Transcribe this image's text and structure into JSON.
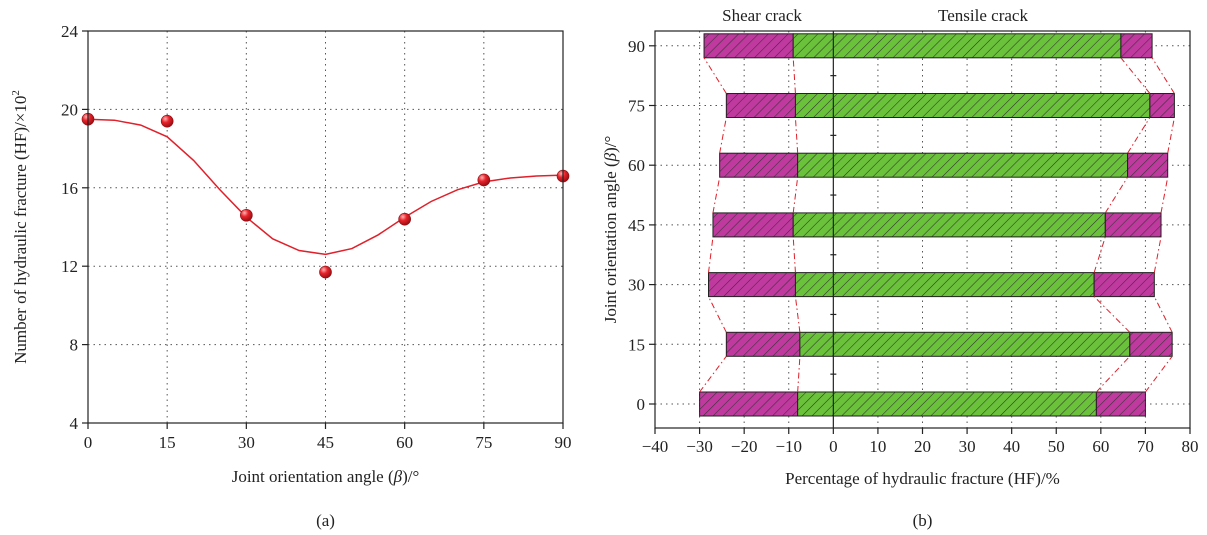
{
  "chart_data": [
    {
      "type": "scatter",
      "panel_label": "(a)",
      "xlabel_parts": [
        "Joint orientation angle (",
        "β",
        ")/°"
      ],
      "ylabel_parts": [
        "Number of hydraulic fracture (HF)/×10",
        "2"
      ],
      "xlim": [
        0,
        90
      ],
      "ylim": [
        4,
        24
      ],
      "xticks": [
        0,
        15,
        30,
        45,
        60,
        75,
        90
      ],
      "yticks": [
        4,
        8,
        12,
        16,
        20,
        24
      ],
      "grid": true,
      "colors": {
        "marker": "#e0202a",
        "fit_line": "#e0202a"
      },
      "points": [
        {
          "x": 0,
          "y": 19.5
        },
        {
          "x": 15,
          "y": 19.4
        },
        {
          "x": 30,
          "y": 14.6
        },
        {
          "x": 45,
          "y": 11.7
        },
        {
          "x": 60,
          "y": 14.4
        },
        {
          "x": 75,
          "y": 16.4
        },
        {
          "x": 90,
          "y": 16.6
        }
      ],
      "fit_curve": [
        {
          "x": 0,
          "y": 19.5
        },
        {
          "x": 5,
          "y": 19.45
        },
        {
          "x": 10,
          "y": 19.2
        },
        {
          "x": 15,
          "y": 18.6
        },
        {
          "x": 20,
          "y": 17.4
        },
        {
          "x": 25,
          "y": 15.9
        },
        {
          "x": 30,
          "y": 14.5
        },
        {
          "x": 35,
          "y": 13.4
        },
        {
          "x": 40,
          "y": 12.8
        },
        {
          "x": 45,
          "y": 12.6
        },
        {
          "x": 50,
          "y": 12.9
        },
        {
          "x": 55,
          "y": 13.6
        },
        {
          "x": 60,
          "y": 14.5
        },
        {
          "x": 65,
          "y": 15.3
        },
        {
          "x": 70,
          "y": 15.9
        },
        {
          "x": 75,
          "y": 16.3
        },
        {
          "x": 80,
          "y": 16.5
        },
        {
          "x": 85,
          "y": 16.6
        },
        {
          "x": 90,
          "y": 16.65
        }
      ]
    },
    {
      "type": "bar",
      "orientation": "horizontal",
      "panel_label": "(b)",
      "xlabel": "Percentage of hydraulic fracture (HF)/%",
      "ylabel_parts": [
        "Joint orientation angle (",
        "β",
        ")/°"
      ],
      "region_labels": {
        "left": "Shear crack",
        "right": "Tensile crack"
      },
      "xlim": [
        -40,
        80
      ],
      "xticks": [
        -40,
        -30,
        -20,
        -10,
        0,
        10,
        20,
        30,
        40,
        50,
        60,
        70,
        80
      ],
      "categories": [
        0,
        15,
        30,
        45,
        60,
        75,
        90
      ],
      "grid": true,
      "colors": {
        "shear": "#c0399f",
        "tensile": "#6ac13a",
        "connector": "#e0202a"
      },
      "bars": [
        {
          "angle": 0,
          "start": -30,
          "split": -8,
          "split_pos": 59,
          "end": 70
        },
        {
          "angle": 15,
          "start": -24,
          "split": -7.5,
          "split_pos": 66.5,
          "end": 76
        },
        {
          "angle": 30,
          "start": -28,
          "split": -8.5,
          "split_pos": 58.5,
          "end": 72
        },
        {
          "angle": 45,
          "start": -27,
          "split": -9,
          "split_pos": 61,
          "end": 73.5
        },
        {
          "angle": 60,
          "start": -25.5,
          "split": -8,
          "split_pos": 66,
          "end": 75
        },
        {
          "angle": 75,
          "start": -24,
          "split": -8.5,
          "split_pos": 71,
          "end": 76.5
        },
        {
          "angle": 90,
          "start": -29,
          "split": -9,
          "split_pos": 64.5,
          "end": 71.5
        }
      ]
    }
  ]
}
